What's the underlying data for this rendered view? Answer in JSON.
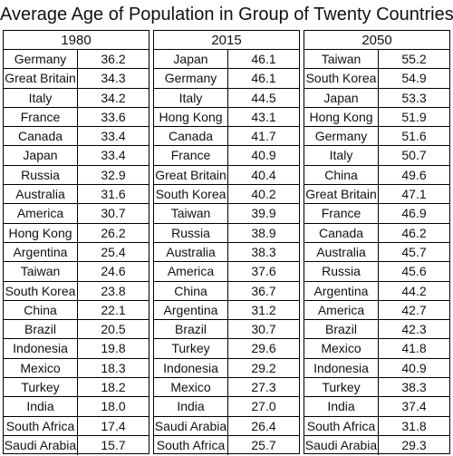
{
  "chart_data": {
    "type": "table",
    "title": "Average Age of Population in Group of Twenty Countries",
    "columns": [
      {
        "year": "1980",
        "rows": [
          {
            "country": "Germany",
            "value": "36.2"
          },
          {
            "country": "Great Britain",
            "value": "34.3"
          },
          {
            "country": "Italy",
            "value": "34.2"
          },
          {
            "country": "France",
            "value": "33.6"
          },
          {
            "country": "Canada",
            "value": "33.4"
          },
          {
            "country": "Japan",
            "value": "33.4"
          },
          {
            "country": "Russia",
            "value": "32.9"
          },
          {
            "country": "Australia",
            "value": "31.6"
          },
          {
            "country": "America",
            "value": "30.7"
          },
          {
            "country": "Hong Kong",
            "value": "26.2"
          },
          {
            "country": "Argentina",
            "value": "25.4"
          },
          {
            "country": "Taiwan",
            "value": "24.6"
          },
          {
            "country": "South Korea",
            "value": "23.8"
          },
          {
            "country": "China",
            "value": "22.1"
          },
          {
            "country": "Brazil",
            "value": "20.5"
          },
          {
            "country": "Indonesia",
            "value": "19.8"
          },
          {
            "country": "Mexico",
            "value": "18.3"
          },
          {
            "country": "Turkey",
            "value": "18.2"
          },
          {
            "country": "India",
            "value": "18.0"
          },
          {
            "country": "South Africa",
            "value": "17.4"
          },
          {
            "country": "Saudi Arabia",
            "value": "15.7"
          }
        ]
      },
      {
        "year": "2015",
        "rows": [
          {
            "country": "Japan",
            "value": "46.1"
          },
          {
            "country": "Germany",
            "value": "46.1"
          },
          {
            "country": "Italy",
            "value": "44.5"
          },
          {
            "country": "Hong Kong",
            "value": "43.1"
          },
          {
            "country": "Canada",
            "value": "41.7"
          },
          {
            "country": "France",
            "value": "40.9"
          },
          {
            "country": "Great Britain",
            "value": "40.4"
          },
          {
            "country": "South Korea",
            "value": "40.2"
          },
          {
            "country": "Taiwan",
            "value": "39.9"
          },
          {
            "country": "Russia",
            "value": "38.9"
          },
          {
            "country": "Australia",
            "value": "38.3"
          },
          {
            "country": "America",
            "value": "37.6"
          },
          {
            "country": "China",
            "value": "36.7"
          },
          {
            "country": "Argentina",
            "value": "31.2"
          },
          {
            "country": "Brazil",
            "value": "30.7"
          },
          {
            "country": "Turkey",
            "value": "29.6"
          },
          {
            "country": "Indonesia",
            "value": "29.2"
          },
          {
            "country": "Mexico",
            "value": "27.3"
          },
          {
            "country": "India",
            "value": "27.0"
          },
          {
            "country": "Saudi Arabia",
            "value": "26.4"
          },
          {
            "country": "South Africa",
            "value": "25.7"
          }
        ]
      },
      {
        "year": "2050",
        "rows": [
          {
            "country": "Taiwan",
            "value": "55.2"
          },
          {
            "country": "South Korea",
            "value": "54.9"
          },
          {
            "country": "Japan",
            "value": "53.3"
          },
          {
            "country": "Hong Kong",
            "value": "51.9"
          },
          {
            "country": "Germany",
            "value": "51.6"
          },
          {
            "country": "Italy",
            "value": "50.7"
          },
          {
            "country": "China",
            "value": "49.6"
          },
          {
            "country": "Great Britain",
            "value": "47.1"
          },
          {
            "country": "France",
            "value": "46.9"
          },
          {
            "country": "Canada",
            "value": "46.2"
          },
          {
            "country": "Australia",
            "value": "45.7"
          },
          {
            "country": "Russia",
            "value": "45.6"
          },
          {
            "country": "Argentina",
            "value": "44.2"
          },
          {
            "country": "America",
            "value": "42.7"
          },
          {
            "country": "Brazil",
            "value": "42.3"
          },
          {
            "country": "Mexico",
            "value": "41.8"
          },
          {
            "country": "Indonesia",
            "value": "40.9"
          },
          {
            "country": "Turkey",
            "value": "38.3"
          },
          {
            "country": "India",
            "value": "37.4"
          },
          {
            "country": "South Africa",
            "value": "31.8"
          },
          {
            "country": "Saudi Arabia",
            "value": "29.3"
          }
        ]
      }
    ]
  }
}
